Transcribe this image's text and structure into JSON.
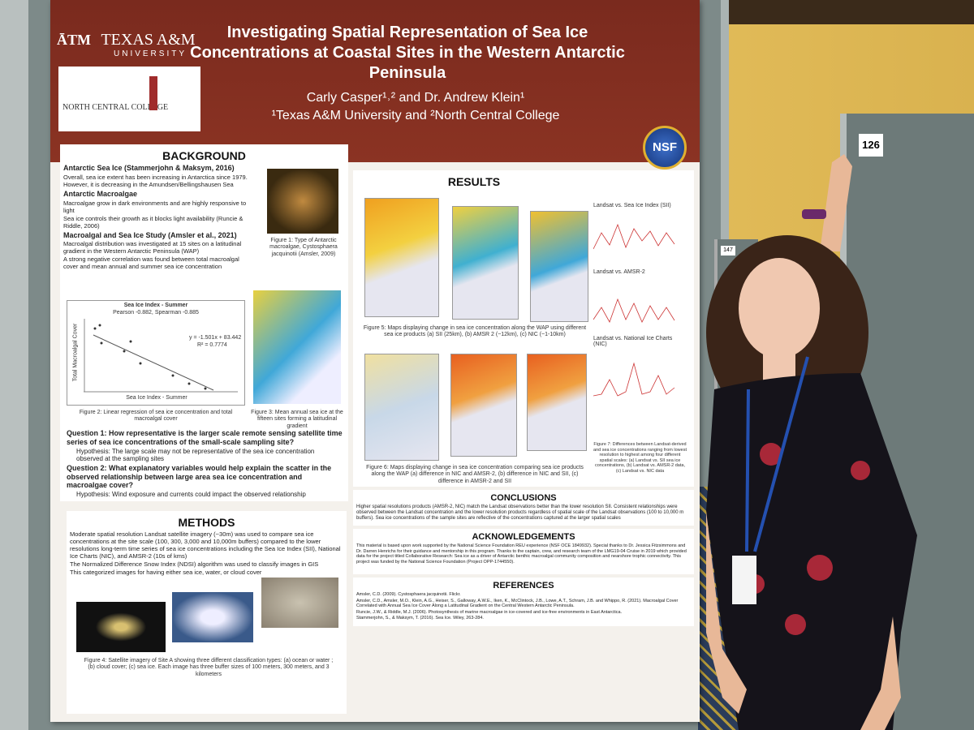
{
  "poster": {
    "title": "Investigating Spatial Representation of Sea Ice Concentrations at Coastal Sites in the Western Antarctic Peninsula",
    "authors": "Carly Casper¹˒² and Dr. Andrew Klein¹",
    "affiliation": "¹Texas A&M University and ²North Central College",
    "logos": {
      "tamu_mark": "ĀTM",
      "tamu_name": "TEXAS A&M",
      "tamu_sub": "UNIVERSITY",
      "ncc": "NORTH CENTRAL COLLEGE",
      "nsf": "NSF"
    },
    "background": {
      "heading": "BACKGROUND",
      "sub1": "Antarctic Sea Ice (Stammerjohn & Maksym, 2016)",
      "text1": "Overall, sea ice extent has been increasing in Antarctica since 1979. However, it is decreasing in the Amundsen/Bellingshausen Sea",
      "sub2": "Antarctic Macroalgae",
      "text2": "Macroalgae grow in dark environments and are highly responsive to light",
      "text3": "Sea ice controls their growth as it blocks light availability (Runcie & Riddle, 2006)",
      "sub3": "Macroalgal and Sea Ice Study (Amsler et al., 2021)",
      "text4": "Macroalgal distribution was investigated at 15 sites on a latitudinal gradient in the Western Antarctic Peninsula (WAP)",
      "text5": "A strong negative correlation was found between total macroalgal cover and mean annual and summer sea ice concentration",
      "fig1": "Figure 1: Type of Antarctic macroalgae, Cystosphaera jacquinotii (Amsler, 2009)",
      "plot_title": "Sea Ice Index - Summer",
      "plot_stats": "Pearson -0.882, Spearman -0.885",
      "plot_eq": "y = -1.501x + 83.442",
      "plot_r2": "R² = 0.7774",
      "plot_ylabel": "Total Macroalgal Cover",
      "plot_xlabel": "Sea Ice Index - Summer",
      "fig2": "Figure 2: Linear regression of sea ice concentration and total macroalgal cover",
      "fig3": "Figure 3: Mean annual sea ice at the fifteen sites forming a latitudinal gradient",
      "q1": "Question 1: How representative is the larger scale remote sensing satellite time series of sea ice concentrations of the small-scale sampling site?",
      "h1": "Hypothesis: The large scale may not be representative of the sea ice concentration observed at the sampling sites",
      "q2": "Question 2: What explanatory variables would help explain the scatter in the observed relationship between large area sea ice concentration and macroalgae cover?",
      "h2": "Hypothesis: Wind exposure and currents could impact the observed relationship"
    },
    "methods": {
      "heading": "METHODS",
      "text1": "Moderate spatial resolution Landsat satellite imagery (~30m) was used to compare sea ice concentrations at the site scale (100, 300, 3,000 and 10,000m buffers) compared to the lower resolutions long-term time series of sea ice concentrations including the Sea Ice Index (SII), National Ice Charts (NIC), and AMSR-2 (10s of kms)",
      "text2": "The Normalized Difference Snow Index (NDSI) algorithm was used to classify images in GIS",
      "text3": "This categorized images for having either sea ice, water, or cloud cover",
      "fig4": "Figure 4: Satellite imagery of Site A showing three different classification types: (a) ocean or water ; (b) cloud cover; (c) sea ice. Each image has three buffer sizes of 100 meters, 300 meters, and 3 kilometers"
    },
    "results": {
      "heading": "RESULTS",
      "fig5": "Figure 5: Maps displaying change in sea ice concentration along the WAP using different sea ice products (a) SII (25km), (b) AMSR 2 (~12km), (c) NIC (~1-10km)",
      "fig6": "Figure 6: Maps displaying change in sea ice concentration comparing sea ice products along the WAP (a) difference in NIC and AMSR-2, (b) difference in NIC and SII, (c) difference in AMSR-2 and SII",
      "chart1": "Landsat vs. Sea Ice Index (SII)",
      "chart2": "Landsat vs. AMSR-2",
      "chart3": "Landsat vs. National Ice Charts (NIC)",
      "fig7": "Figure 7: Differences between Landsat-derived and sea ice concentrations ranging from lowest resolution to highest among four different spatial scales: (a) Landsat vs. SII sea ice concentrations, (b) Landsat vs. AMSR-2 data, (c) Landsat vs. NIC data"
    },
    "conclusions": {
      "heading": "CONCLUSIONS",
      "text": "Higher spatial resolutions products (AMSR-2, NIC) match the Landsat observations better than the lower resolution SII. Consistent relationships were observed between the Landsat concentration and the lower resolution products regardless of spatial scale of the Landsat observations (100 to 10,000 m buffers). Sea ice concentrations of the sample sites are reflective of the concentrations captured at the larger spatial scales"
    },
    "acknowledgements": {
      "heading": "ACKNOWLEDGEMENTS",
      "text": "This material is based upon work supported by the National Science Foundation REU experience (NSF OCE 1849932). Special thanks to Dr. Jessica Fitzsimmons and Dr. Darren Henrichs for their guidance and mentorship in this program. Thanks to the captain, crew, and research team of the LMG19-04 Cruise in 2019 which provided data for the project titled Collaborative Research: Sea ice as a driver of Antarctic benthic macroalgal community composition and nearshore trophic connectivity. This project was funded by the National Science Foundation (Project OPP-1744550)."
    },
    "references": {
      "heading": "REFERENCES",
      "items": [
        "Amsler, C.D. (2009). Cystosphaera jacquinotii. Flickr.",
        "Amsler, C.D., Amsler, M.O., Klein, A.G., Heiser, S., Galloway, A.W.E., Iken, K., McClintock, J.B., Lowe, A.T., Schram, J.B. and Whippo, R. (2021). Macroalgal Cover Correlated with Annual Sea Ice Cover Along a Latitudinal Gradient on the Central Western Antarctic Peninsula.",
        "Runcie, J.W., & Riddle, M.J. (2006). Photosynthesis of marine macroalgae in ice-covered and ice-free environments in East Antarctica.",
        "Stammerjohn, S., & Maksym, T. (2016). Sea Ice. Wiley, 263-284."
      ]
    }
  },
  "booths": {
    "main": "126",
    "far": "147"
  }
}
